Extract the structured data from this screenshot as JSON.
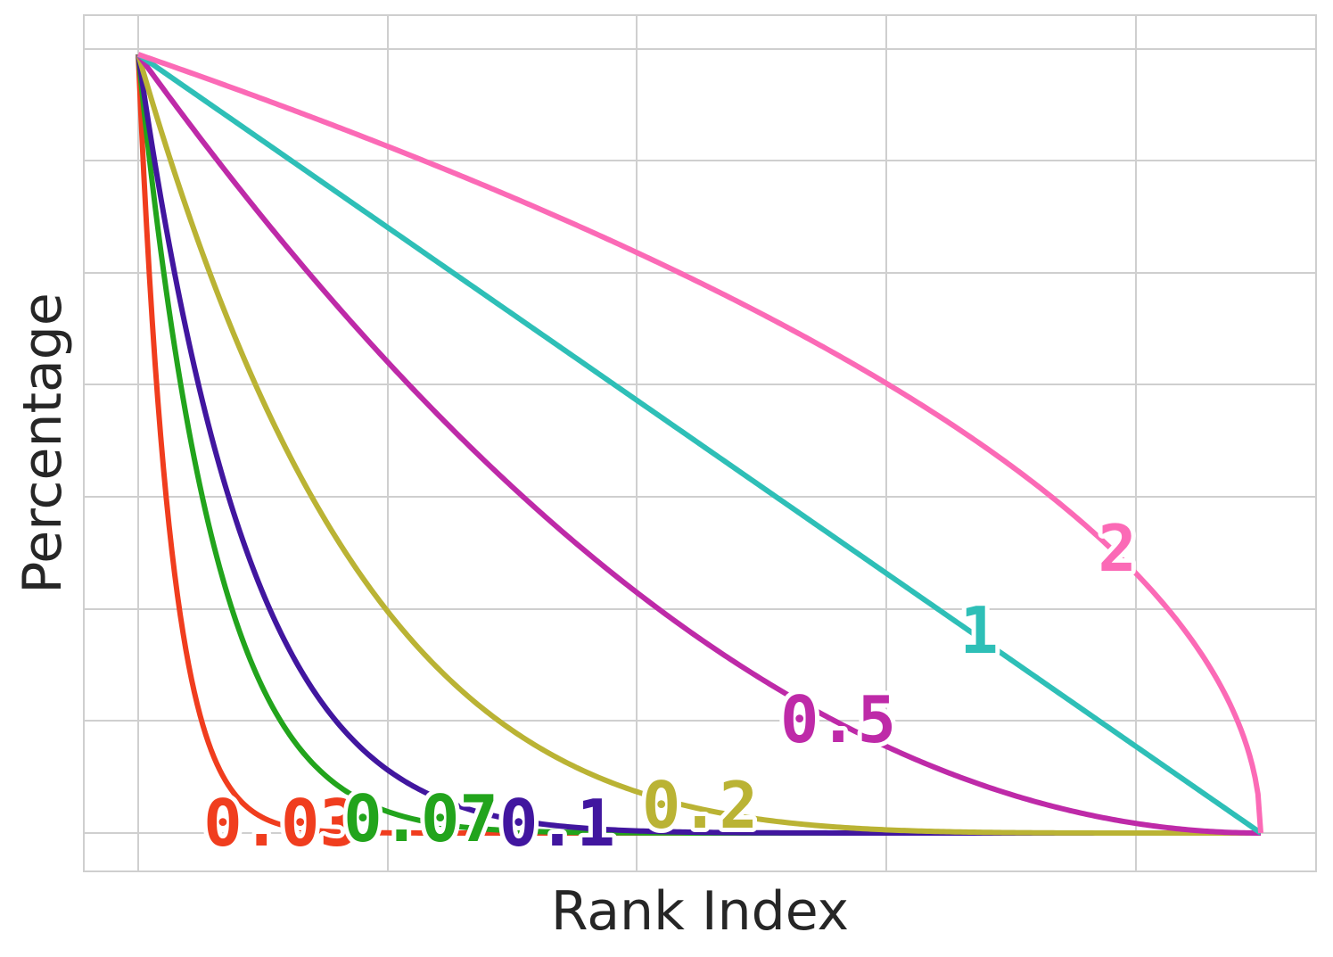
{
  "chart_data": {
    "type": "line",
    "title": "",
    "xlabel": "Rank Index",
    "ylabel": "Percentage",
    "x_tick_labels": [],
    "y_tick_labels": [],
    "grid": true,
    "legend": "none (inline labels at curve ends)",
    "xlim": [
      0,
      1
    ],
    "ylim": [
      0,
      1
    ],
    "series": [
      {
        "name": "0.03",
        "color": "#f03d1e",
        "exponent": 0.03
      },
      {
        "name": "0.07",
        "color": "#22a41c",
        "exponent": 0.07
      },
      {
        "name": "0.1",
        "color": "#41169f",
        "exponent": 0.1
      },
      {
        "name": "0.2",
        "color": "#bab334",
        "exponent": 0.2
      },
      {
        "name": "0.5",
        "color": "#be2aa8",
        "exponent": 0.5
      },
      {
        "name": "1",
        "color": "#2ebfb7",
        "exponent": 1
      },
      {
        "name": "2",
        "color": "#fb6ab6",
        "exponent": 2
      }
    ]
  }
}
